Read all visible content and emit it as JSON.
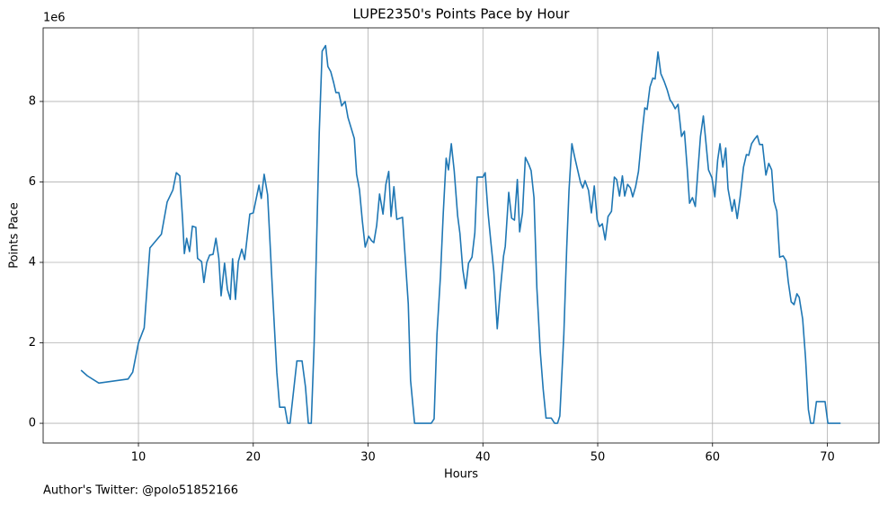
{
  "chart_data": {
    "type": "line",
    "title": "LUPE2350's Points Pace by Hour",
    "xlabel": "Hours",
    "ylabel": "Points Pace",
    "y_offset_text": "1e6",
    "footnote": "Author's Twitter: @polo51852166",
    "xlim": [
      1.7,
      74.5
    ],
    "ylim": [
      -0.49,
      9.83
    ],
    "xticks": [
      10,
      20,
      30,
      40,
      50,
      60,
      70
    ],
    "yticks": [
      0,
      2,
      4,
      6,
      8
    ],
    "grid": true,
    "x": [
      5.0,
      5.55,
      6.55,
      9.1,
      9.5,
      10,
      10.5,
      11.0,
      12.0,
      12.5,
      13.0,
      13.3,
      13.6,
      13.85,
      14.0,
      14.2,
      14.45,
      14.7,
      15.0,
      15.15,
      15.5,
      15.7,
      15.95,
      16.2,
      16.5,
      16.75,
      17.0,
      17.2,
      17.5,
      17.75,
      18.0,
      18.2,
      18.45,
      18.7,
      19.0,
      19.25,
      19.7,
      20.0,
      20.5,
      20.7,
      20.95,
      21.25,
      21.65,
      22.05,
      22.3,
      22.75,
      23.0,
      23.2,
      23.8,
      24.25,
      24.55,
      24.8,
      25.05,
      25.3,
      25.75,
      26.0,
      26.3,
      26.5,
      26.75,
      27.0,
      27.2,
      27.45,
      27.7,
      28.0,
      28.25,
      28.8,
      29.0,
      29.25,
      29.5,
      29.75,
      30.05,
      30.3,
      30.5,
      30.75,
      31.0,
      31.3,
      31.55,
      31.8,
      32.0,
      32.25,
      32.5,
      33.0,
      33.5,
      33.7,
      34.05,
      35.5,
      35.75,
      36.0,
      36.3,
      36.55,
      36.8,
      37.0,
      37.25,
      37.5,
      37.8,
      38.0,
      38.25,
      38.5,
      38.75,
      39.05,
      39.3,
      39.5,
      40.0,
      40.2,
      40.45,
      40.7,
      40.95,
      41.25,
      41.5,
      41.8,
      41.95,
      42.25,
      42.5,
      42.75,
      43.0,
      43.2,
      43.45,
      43.7,
      44.0,
      44.2,
      44.45,
      44.7,
      45.0,
      45.25,
      45.5,
      45.95,
      46.25,
      46.5,
      46.7,
      47.05,
      47.3,
      47.5,
      47.75,
      48.0,
      48.5,
      48.7,
      48.9,
      49.2,
      49.45,
      49.7,
      49.95,
      50.15,
      50.4,
      50.65,
      50.9,
      51.2,
      51.45,
      51.65,
      51.9,
      52.15,
      52.35,
      52.6,
      52.85,
      53.05,
      53.3,
      53.55,
      53.85,
      54.1,
      54.3,
      54.55,
      54.8,
      55.0,
      55.25,
      55.5,
      55.8,
      56.05,
      56.3,
      56.5,
      56.75,
      57.0,
      57.3,
      57.55,
      57.8,
      58.0,
      58.25,
      58.5,
      58.7,
      58.95,
      59.2,
      59.4,
      59.65,
      59.95,
      60.2,
      60.45,
      60.65,
      60.9,
      61.15,
      61.35,
      61.7,
      61.9,
      62.15,
      62.4,
      62.7,
      62.95,
      63.15,
      63.4,
      63.65,
      63.9,
      64.1,
      64.35,
      64.65,
      64.9,
      65.15,
      65.35,
      65.6,
      65.85,
      66.15,
      66.4,
      66.6,
      66.85,
      67.1,
      67.35,
      67.55,
      67.85,
      68.1,
      68.35,
      68.55,
      68.8,
      69.05,
      69.8,
      70.05,
      71.15
    ],
    "series": [
      {
        "name": "Points Pace",
        "color": "#1f77b4",
        "values": [
          1.32,
          1.18,
          1.0,
          1.1,
          1.27,
          2.0,
          2.37,
          4.36,
          4.7,
          5.5,
          5.8,
          6.23,
          6.15,
          5.05,
          4.22,
          4.6,
          4.27,
          4.9,
          4.87,
          4.1,
          4.02,
          3.5,
          4.0,
          4.18,
          4.2,
          4.6,
          4.1,
          3.17,
          3.98,
          3.33,
          3.08,
          4.09,
          3.08,
          4.02,
          4.33,
          4.07,
          5.2,
          5.23,
          5.92,
          5.59,
          6.19,
          5.68,
          3.42,
          1.27,
          0.4,
          0.4,
          0,
          0,
          1.55,
          1.55,
          0.9,
          0,
          0,
          1.95,
          7.24,
          9.25,
          9.39,
          8.87,
          8.74,
          8.47,
          8.22,
          8.22,
          7.89,
          8.0,
          7.6,
          7.08,
          6.19,
          5.81,
          5.03,
          4.38,
          4.65,
          4.54,
          4.49,
          4.92,
          5.7,
          5.2,
          5.94,
          6.26,
          5.14,
          5.88,
          5.07,
          5.12,
          2.97,
          1.07,
          0,
          0,
          0.11,
          2.21,
          3.64,
          5.23,
          6.59,
          6.3,
          6.95,
          6.28,
          5.16,
          4.72,
          3.82,
          3.35,
          3.98,
          4.13,
          4.74,
          6.12,
          6.12,
          6.23,
          5.23,
          4.49,
          3.78,
          2.35,
          3.26,
          4.16,
          4.4,
          5.74,
          5.1,
          5.05,
          6.06,
          4.76,
          5.23,
          6.61,
          6.43,
          6.28,
          5.61,
          3.37,
          1.77,
          0.85,
          0.13,
          0.13,
          0,
          0,
          0.18,
          2.21,
          4.36,
          5.79,
          6.95,
          6.61,
          5.99,
          5.85,
          6.03,
          5.79,
          5.23,
          5.9,
          5.07,
          4.89,
          4.96,
          4.56,
          5.14,
          5.27,
          6.12,
          6.06,
          5.65,
          6.15,
          5.65,
          5.94,
          5.85,
          5.63,
          5.88,
          6.26,
          7.17,
          7.84,
          7.8,
          8.36,
          8.58,
          8.56,
          9.23,
          8.69,
          8.49,
          8.29,
          8.04,
          7.96,
          7.82,
          7.93,
          7.13,
          7.26,
          6.32,
          5.47,
          5.61,
          5.39,
          6.17,
          7.13,
          7.64,
          7.06,
          6.3,
          6.1,
          5.63,
          6.55,
          6.95,
          6.37,
          6.84,
          5.83,
          5.27,
          5.56,
          5.09,
          5.61,
          6.37,
          6.68,
          6.66,
          6.95,
          7.06,
          7.15,
          6.93,
          6.93,
          6.17,
          6.46,
          6.3,
          5.52,
          5.27,
          4.13,
          4.16,
          4.04,
          3.51,
          3.02,
          2.95,
          3.22,
          3.13,
          2.59,
          1.63,
          0.34,
          0,
          0,
          0.54,
          0.54,
          0,
          0
        ]
      }
    ]
  }
}
